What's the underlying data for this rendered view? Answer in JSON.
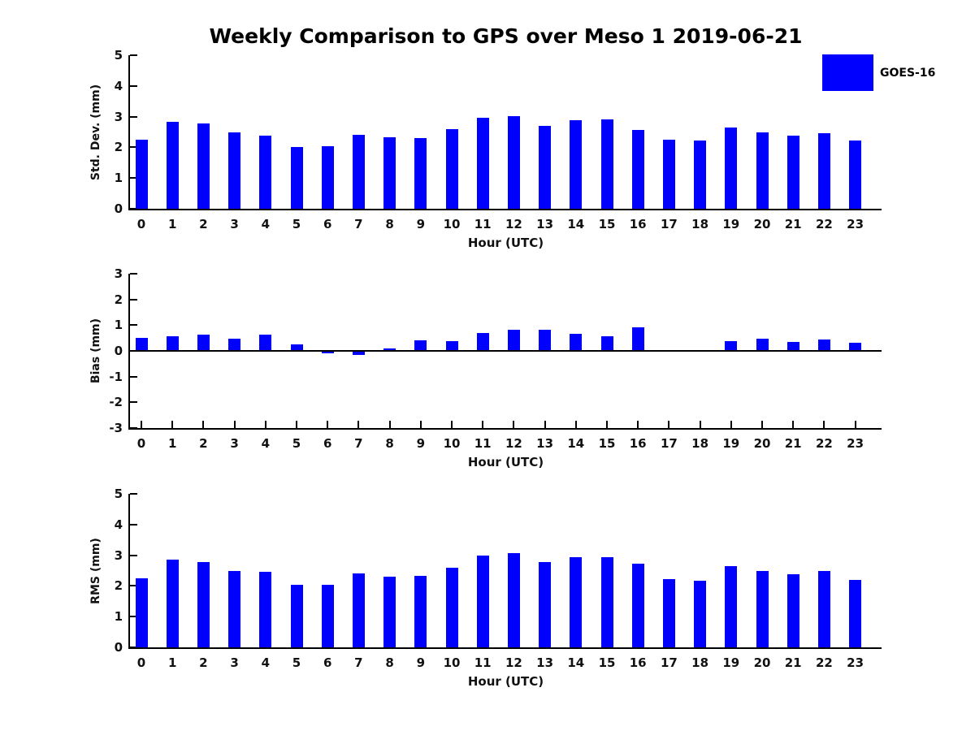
{
  "title": "Weekly Comparison to GPS over Meso 1 2019-06-21",
  "xlabel": "Hour (UTC)",
  "bar_color": "#0000ff",
  "legend": {
    "label": "GOES-16",
    "color": "#0000ff",
    "position": "top-right"
  },
  "chart_data": [
    {
      "type": "bar",
      "ylabel": "Std. Dev. (mm)",
      "ylim": [
        0,
        5
      ],
      "yticks": [
        0,
        1,
        2,
        3,
        4,
        5
      ],
      "grid": false,
      "categories": [
        "0",
        "1",
        "2",
        "3",
        "4",
        "5",
        "6",
        "7",
        "8",
        "9",
        "10",
        "11",
        "12",
        "13",
        "14",
        "15",
        "16",
        "17",
        "18",
        "19",
        "20",
        "21",
        "22",
        "23"
      ],
      "values": [
        2.24,
        2.84,
        2.77,
        2.48,
        2.39,
        2.01,
        2.04,
        2.41,
        2.32,
        2.3,
        2.6,
        2.95,
        3.01,
        2.71,
        2.89,
        2.92,
        2.57,
        2.25,
        2.21,
        2.65,
        2.5,
        2.38,
        2.47,
        2.22
      ]
    },
    {
      "type": "bar",
      "ylabel": "Bias (mm)",
      "ylim": [
        -3,
        3
      ],
      "yticks": [
        -3,
        -2,
        -1,
        0,
        1,
        2,
        3
      ],
      "grid": false,
      "zero_line": true,
      "categories": [
        "0",
        "1",
        "2",
        "3",
        "4",
        "5",
        "6",
        "7",
        "8",
        "9",
        "10",
        "11",
        "12",
        "13",
        "14",
        "15",
        "16",
        "17",
        "18",
        "19",
        "20",
        "21",
        "22",
        "23"
      ],
      "values": [
        0.52,
        0.56,
        0.62,
        0.48,
        0.64,
        0.26,
        -0.08,
        -0.15,
        0.1,
        0.42,
        0.38,
        0.7,
        0.82,
        0.82,
        0.67,
        0.57,
        0.92,
        -0.02,
        0.0,
        0.37,
        0.47,
        0.34,
        0.44,
        0.32
      ]
    },
    {
      "type": "bar",
      "ylabel": "RMS (mm)",
      "ylim": [
        0,
        5
      ],
      "yticks": [
        0,
        1,
        2,
        3,
        4,
        5
      ],
      "grid": false,
      "categories": [
        "0",
        "1",
        "2",
        "3",
        "4",
        "5",
        "6",
        "7",
        "8",
        "9",
        "10",
        "11",
        "12",
        "13",
        "14",
        "15",
        "16",
        "17",
        "18",
        "19",
        "20",
        "21",
        "22",
        "23"
      ],
      "values": [
        2.25,
        2.85,
        2.79,
        2.5,
        2.45,
        2.03,
        2.05,
        2.41,
        2.3,
        2.33,
        2.58,
        3.0,
        3.08,
        2.79,
        2.93,
        2.93,
        2.72,
        2.22,
        2.16,
        2.64,
        2.5,
        2.38,
        2.48,
        2.2
      ]
    }
  ]
}
